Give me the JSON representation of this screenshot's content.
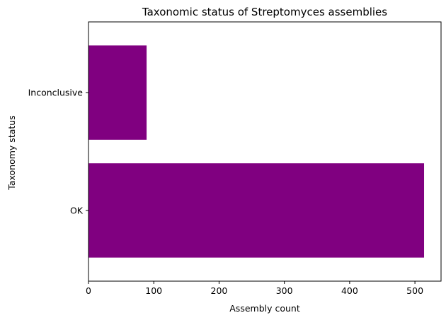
{
  "chart_data": {
    "type": "bar",
    "orientation": "horizontal",
    "title": "Taxonomic status of Streptomyces assemblies",
    "xlabel": "Assembly count",
    "ylabel": "Taxonomy status",
    "categories": [
      "OK",
      "Inconclusive"
    ],
    "values": [
      514,
      89
    ],
    "xlim": [
      0,
      540
    ],
    "xticks": [
      0,
      100,
      200,
      300,
      400,
      500
    ],
    "grid": false,
    "legend": "none",
    "bar_color": "#800080"
  }
}
